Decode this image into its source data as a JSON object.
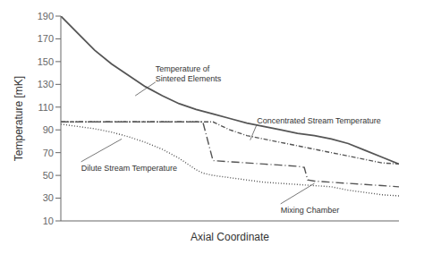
{
  "chart_data": {
    "type": "line",
    "xlabel": "Axial Coordinate",
    "ylabel": "Temperature [mK]",
    "xlim": [
      0,
      1
    ],
    "xticks": [],
    "ylim": [
      10,
      190
    ],
    "yticks": [
      10,
      30,
      50,
      70,
      90,
      110,
      130,
      150,
      170,
      190
    ],
    "tick_labels": "y",
    "grid": false,
    "series": [
      {
        "color": "#555555",
        "line_style": "solid",
        "x": [
          0.0,
          0.05,
          0.1,
          0.15,
          0.2,
          0.25,
          0.3,
          0.35,
          0.4,
          0.45,
          0.5,
          0.55,
          0.6,
          0.65,
          0.7,
          0.75,
          0.8,
          0.85,
          0.9,
          0.95,
          1.0
        ],
        "values": [
          190,
          175,
          160,
          148,
          138,
          128,
          120,
          113,
          108,
          104,
          100,
          96,
          93,
          90,
          87,
          85,
          82,
          78,
          72,
          66,
          60
        ]
      },
      {
        "color": "#555555",
        "line_style": "dashdot",
        "x": [
          0.0,
          0.05,
          0.1,
          0.15,
          0.2,
          0.25,
          0.3,
          0.35,
          0.4,
          0.43,
          0.45,
          0.5,
          0.55,
          0.6,
          0.65,
          0.7,
          0.75,
          0.8,
          0.85,
          0.9,
          0.95,
          1.0
        ],
        "values": [
          97,
          97,
          97,
          97,
          97,
          97,
          97,
          97,
          97,
          97,
          97,
          90,
          85,
          82,
          79,
          76,
          73,
          70,
          67,
          64,
          61,
          60
        ]
      },
      {
        "color": "#555555",
        "line_style": "dotted",
        "x": [
          0.0,
          0.05,
          0.1,
          0.15,
          0.2,
          0.25,
          0.3,
          0.35,
          0.38,
          0.4,
          0.42,
          0.45,
          0.5,
          0.55,
          0.6,
          0.65,
          0.7,
          0.75,
          0.8,
          0.85,
          0.9,
          0.95,
          1.0
        ],
        "values": [
          95,
          93,
          91,
          88,
          84,
          79,
          73,
          65,
          59,
          55,
          52,
          50,
          48,
          46,
          44,
          43,
          42,
          41,
          40,
          37,
          35,
          33,
          32
        ]
      },
      {
        "color": "#555555",
        "line_style": "longdashdot",
        "x": [
          0.0,
          0.05,
          0.1,
          0.15,
          0.2,
          0.25,
          0.3,
          0.35,
          0.38,
          0.4,
          0.42,
          0.45,
          0.5,
          0.55,
          0.6,
          0.65,
          0.7,
          0.72,
          0.73,
          0.75,
          0.8,
          0.85,
          0.9,
          0.95,
          1.0
        ],
        "values": [
          97,
          97,
          97,
          97,
          97,
          97,
          97,
          97,
          97,
          97,
          97,
          63,
          62,
          61,
          60,
          59,
          58,
          57,
          46,
          45,
          44,
          43,
          42,
          41,
          40
        ]
      }
    ],
    "annotations": [
      {
        "text": "Temperature of\nSintered Elements",
        "x": 0.28,
        "y": 132,
        "arrow_x": 0.22,
        "arrow_y": 120
      },
      {
        "text": "Concentrated Stream Temperature",
        "x": 0.58,
        "y": 95,
        "arrow_x": 0.56,
        "arrow_y": 81
      },
      {
        "text": "Dilute Stream Temperature",
        "x": 0.06,
        "y": 62,
        "arrow_x": 0.18,
        "arrow_y": 82
      },
      {
        "text": "Mixing Chamber",
        "x": 0.65,
        "y": 25,
        "arrow_x": 0.75,
        "arrow_y": 43
      }
    ]
  }
}
